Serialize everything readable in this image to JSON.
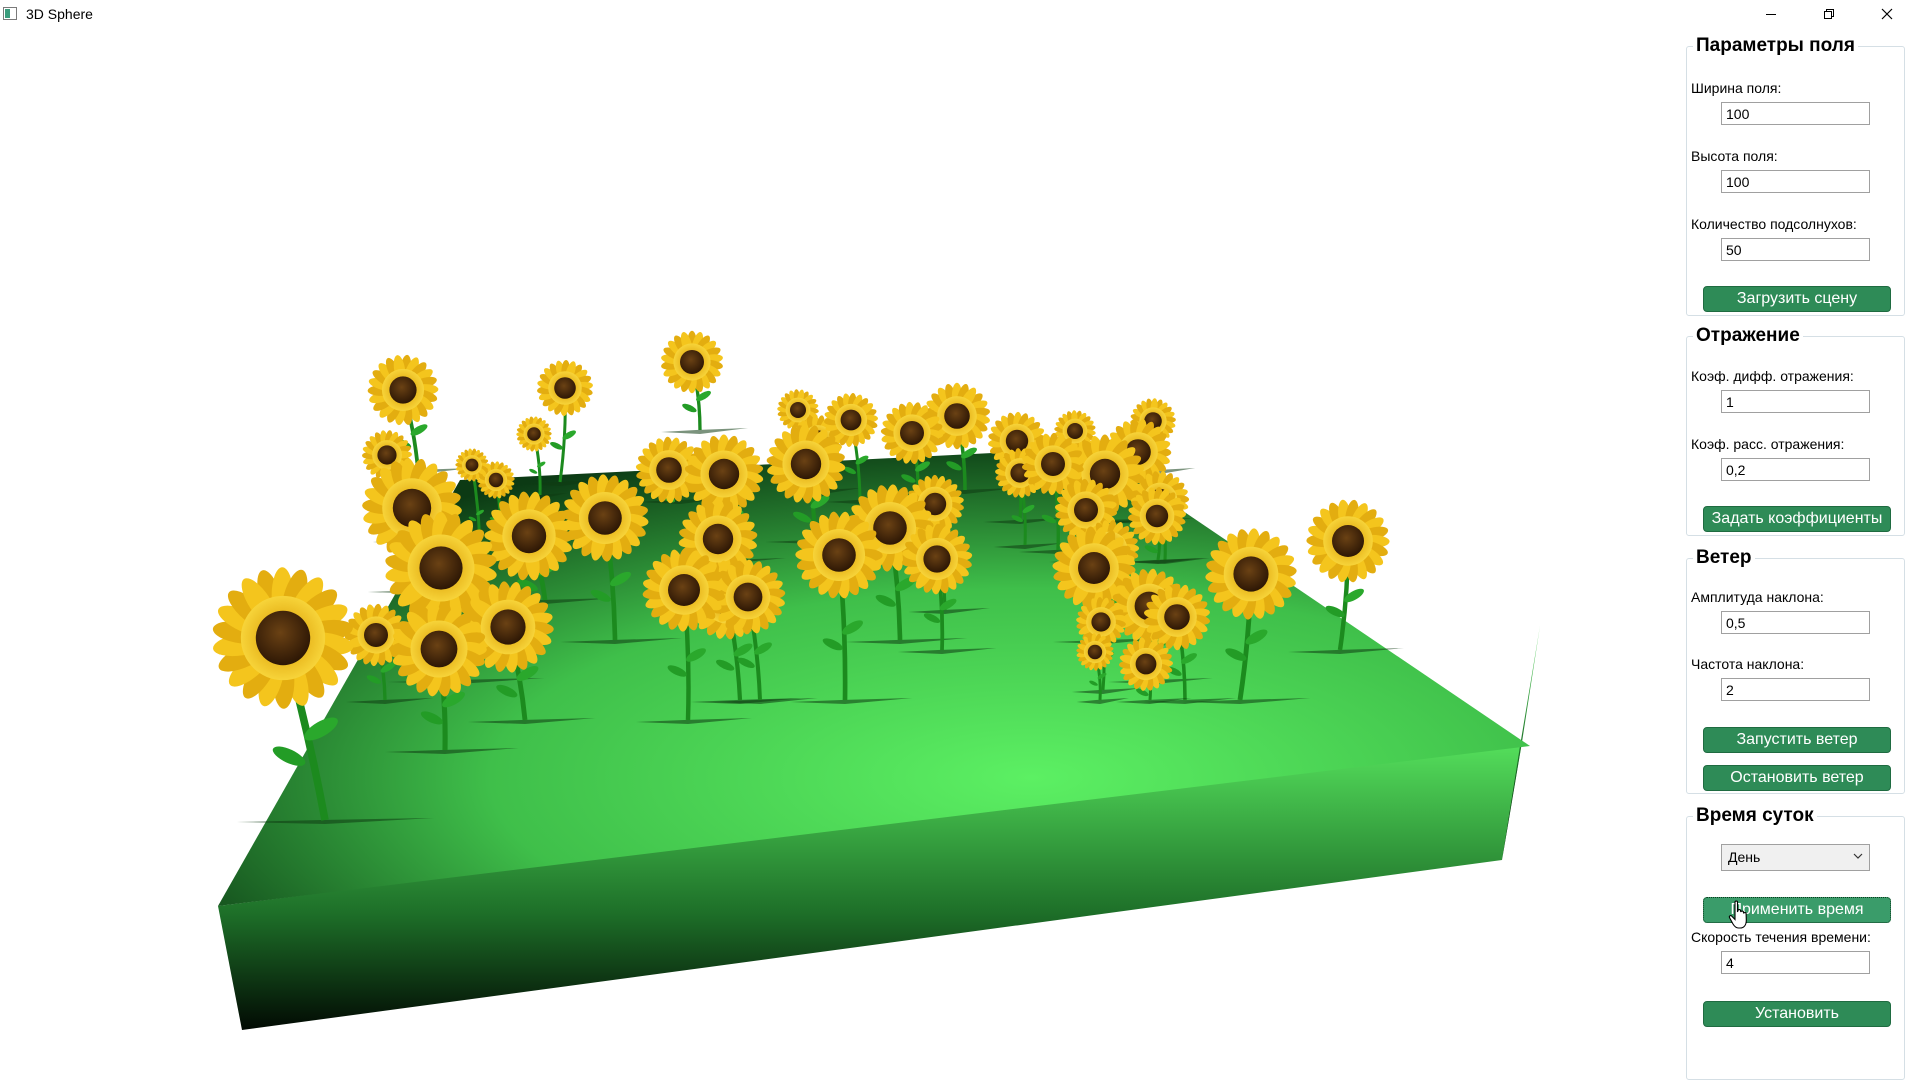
{
  "window": {
    "title": "3D Sphere"
  },
  "panel": {
    "field": {
      "title": "Параметры поля",
      "width_label": "Ширина поля:",
      "width_value": "100",
      "height_label": "Высота поля:",
      "height_value": "100",
      "count_label": "Количество подсолнухов:",
      "count_value": "50",
      "load_button": "Загрузить сцену"
    },
    "reflection": {
      "title": "Отражение",
      "diffuse_label": "Коэф. дифф. отражения:",
      "diffuse_value": "1",
      "scatter_label": "Коэф. расс. отражения:",
      "scatter_value": "0,2",
      "apply_button": "Задать коэффициенты"
    },
    "wind": {
      "title": "Ветер",
      "amplitude_label": "Амплитуда наклона:",
      "amplitude_value": "0,5",
      "frequency_label": "Частота наклона:",
      "frequency_value": "2",
      "start_button": "Запустить ветер",
      "stop_button": "Остановить ветер"
    },
    "time": {
      "title": "Время суток",
      "selected": "День",
      "apply_button": "Применить время",
      "speed_label": "Скорость течения времени:",
      "speed_value": "4",
      "set_button": "Установить"
    }
  },
  "colors": {
    "button": "#2e8b57",
    "field_top": "#5be865",
    "field_dark": "#0b2a10",
    "petal": "#f2c21b",
    "center": "#4a2a0c"
  },
  "icons": [
    "minimize-icon",
    "maximize-icon",
    "close-icon",
    "chevron-down-icon",
    "pointer-cursor-icon"
  ]
}
